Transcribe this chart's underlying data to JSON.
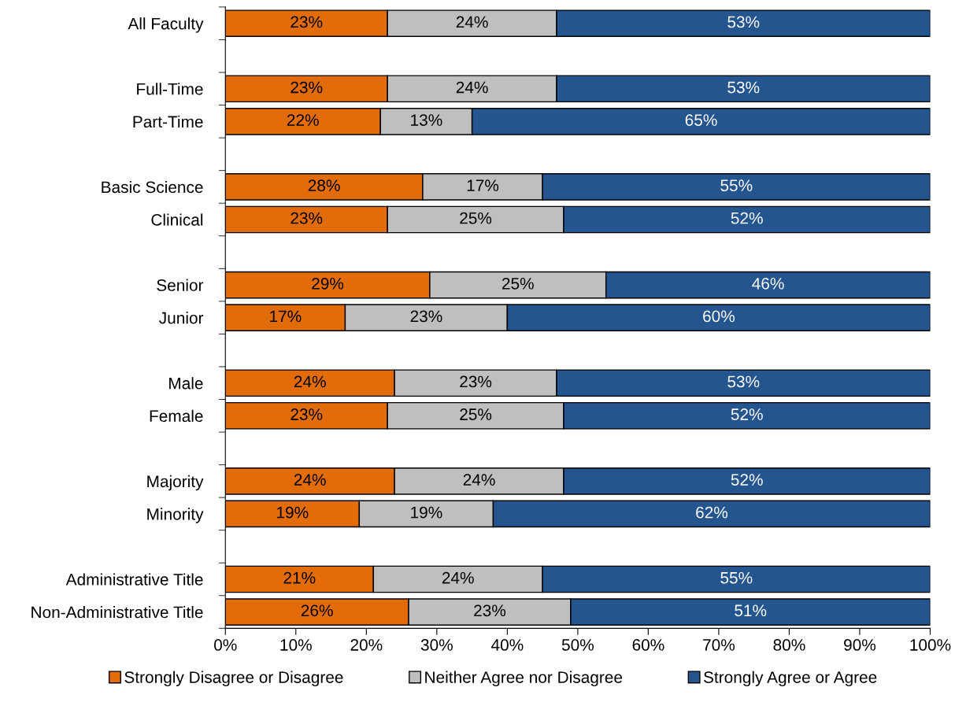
{
  "chart_data": {
    "type": "bar",
    "orientation": "horizontal",
    "stacked": true,
    "categories": [
      "All Faculty",
      null,
      "Full-Time",
      "Part-Time",
      null,
      "Basic Science",
      "Clinical",
      null,
      "Senior",
      "Junior",
      null,
      "Male",
      "Female",
      null,
      "Majority",
      "Minority",
      null,
      "Administrative Title",
      "Non-Administrative Title"
    ],
    "series": [
      {
        "name": "Strongly Disagree or Disagree",
        "color": "#e36c0a",
        "values": [
          23,
          null,
          23,
          22,
          null,
          28,
          23,
          null,
          29,
          17,
          null,
          24,
          23,
          null,
          24,
          19,
          null,
          21,
          26
        ],
        "value_labels": [
          "23%",
          null,
          "23%",
          "22%",
          null,
          "28%",
          "23%",
          null,
          "29%",
          "17%",
          null,
          "24%",
          "23%",
          null,
          "24%",
          "19%",
          null,
          "21%",
          "26%"
        ]
      },
      {
        "name": "Neither Agree nor Disagree",
        "color": "#bfbfbf",
        "values": [
          24,
          null,
          24,
          13,
          null,
          17,
          25,
          null,
          25,
          23,
          null,
          23,
          25,
          null,
          24,
          19,
          null,
          24,
          23
        ],
        "value_labels": [
          "24%",
          null,
          "24%",
          "13%",
          null,
          "17%",
          "25%",
          null,
          "25%",
          "23%",
          null,
          "23%",
          "25%",
          null,
          "24%",
          "19%",
          null,
          "24%",
          "23%"
        ]
      },
      {
        "name": "Strongly Agree or Agree",
        "color": "#24558f",
        "values": [
          53,
          null,
          53,
          65,
          null,
          55,
          52,
          null,
          46,
          60,
          null,
          53,
          52,
          null,
          52,
          62,
          null,
          55,
          51
        ],
        "value_labels": [
          "53%",
          null,
          "53%",
          "65%",
          null,
          "55%",
          "52%",
          null,
          "46%",
          "60%",
          null,
          "53%",
          "52%",
          null,
          "52%",
          "62%",
          null,
          "55%",
          "51%"
        ]
      }
    ],
    "xlim": [
      0,
      100
    ],
    "xticks": [
      {
        "value": 0,
        "label": "0%"
      },
      {
        "value": 10,
        "label": "10%"
      },
      {
        "value": 20,
        "label": "20%"
      },
      {
        "value": 30,
        "label": "30%"
      },
      {
        "value": 40,
        "label": "40%"
      },
      {
        "value": 50,
        "label": "50%"
      },
      {
        "value": 60,
        "label": "60%"
      },
      {
        "value": 70,
        "label": "70%"
      },
      {
        "value": 80,
        "label": "80%"
      },
      {
        "value": 90,
        "label": "90%"
      },
      {
        "value": 100,
        "label": "100%"
      }
    ],
    "grid": false,
    "legend": "bottom"
  }
}
